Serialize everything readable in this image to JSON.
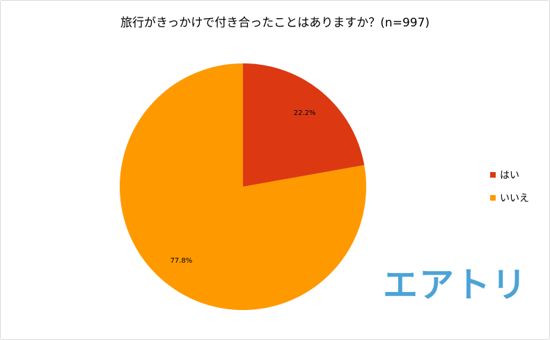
{
  "chart_data": {
    "type": "pie",
    "title": "旅行がきっかけで付き合ったことはありますか？(n=997)",
    "categories": [
      "はい",
      "いいえ"
    ],
    "values": [
      22.2,
      77.8
    ],
    "labels": [
      "22.2%",
      "77.8%"
    ],
    "colors": [
      "#dc3912",
      "#ff9900"
    ],
    "legend": "right"
  },
  "logo": {
    "text": "エアトリ",
    "color": "#4ba3d6"
  }
}
